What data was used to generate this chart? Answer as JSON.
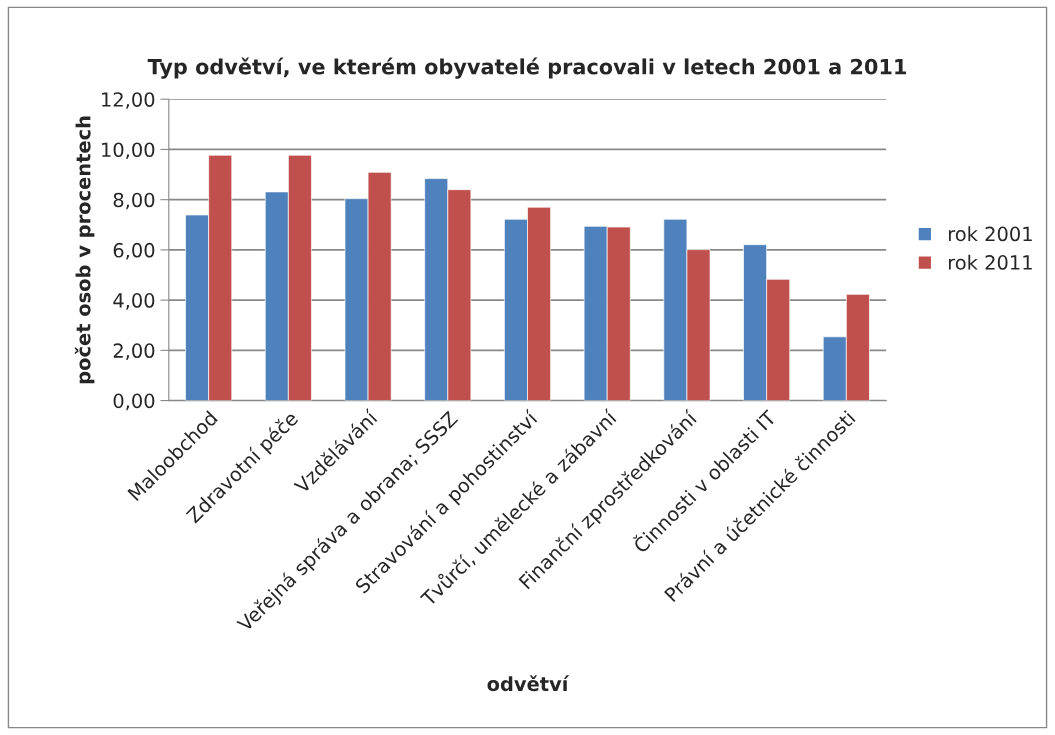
{
  "chart_data": {
    "type": "bar",
    "title": "Typ odvětví, ve kterém obyvatelé pracovali v letech 2001 a 2011",
    "xlabel": "odvětví",
    "ylabel": "počet osob v procentech",
    "categories": [
      "Maloobchod",
      "Zdravotní péče",
      "Vzdělávání",
      "Veřejná správa a obrana; SSSZ",
      "Stravování a pohostinství",
      "Tvůrčí, umělecké a zábavní",
      "Finanční zprostředkování",
      "Činnosti v oblasti IT",
      "Právní a účetnické činnosti"
    ],
    "series": [
      {
        "name": "rok 2001",
        "color": "#4f81bd",
        "values": [
          7.39,
          8.31,
          8.04,
          8.84,
          7.22,
          6.94,
          7.22,
          6.21,
          2.54
        ]
      },
      {
        "name": "rok 2011",
        "color": "#c0504d",
        "values": [
          9.77,
          9.77,
          9.09,
          8.4,
          7.7,
          6.91,
          6.01,
          4.83,
          4.23
        ]
      }
    ],
    "ylim": [
      0,
      12
    ],
    "yticks": [
      {
        "value": 0,
        "label": "0,00"
      },
      {
        "value": 2,
        "label": "2,00"
      },
      {
        "value": 4,
        "label": "4,00"
      },
      {
        "value": 6,
        "label": "6,00"
      },
      {
        "value": 8,
        "label": "8,00"
      },
      {
        "value": 10,
        "label": "10,00"
      },
      {
        "value": 12,
        "label": "12,00"
      }
    ],
    "grid": "y",
    "legend": "right"
  }
}
